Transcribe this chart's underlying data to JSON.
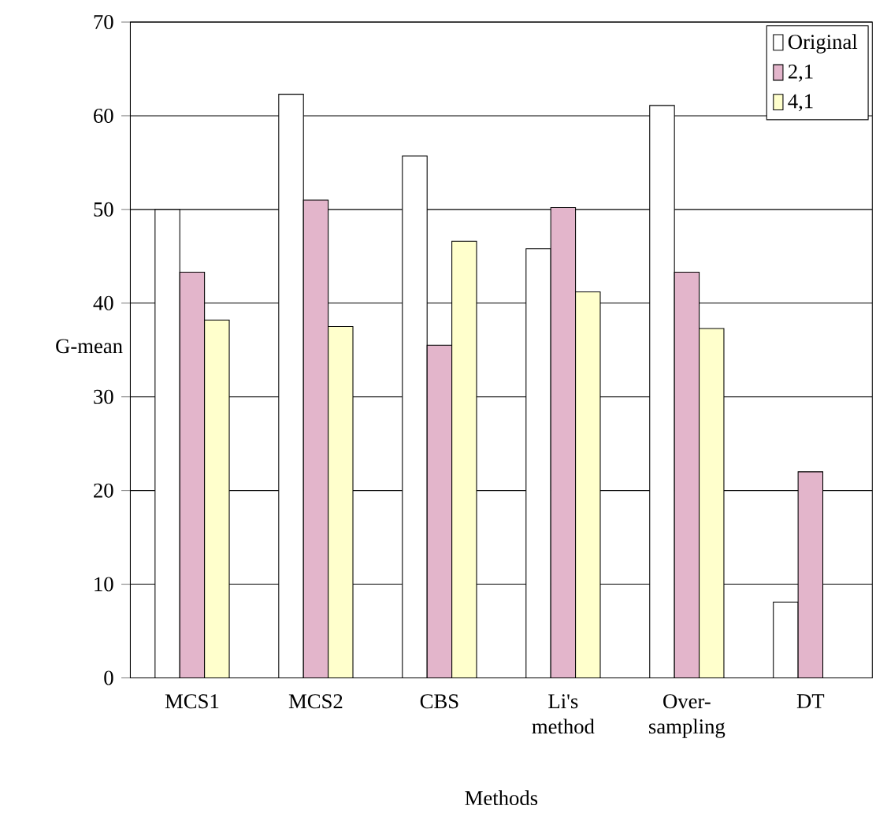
{
  "chart_data": {
    "type": "bar",
    "xlabel": "Methods",
    "ylabel": "G-mean",
    "categories": [
      "MCS1",
      "MCS2",
      "CBS",
      "Li's method",
      "Over-sampling",
      "DT"
    ],
    "series": [
      {
        "name": "Original",
        "color": "#ffffff",
        "values": [
          50,
          62.3,
          55.7,
          45.8,
          61.1,
          8.1
        ]
      },
      {
        "name": "2,1",
        "color": "#e3b5cb",
        "values": [
          43.3,
          51,
          35.5,
          50.2,
          43.3,
          22
        ]
      },
      {
        "name": "4,1",
        "color": "#ffffcc",
        "values": [
          38.2,
          37.5,
          46.6,
          41.2,
          37.3,
          null
        ]
      }
    ],
    "ylim": [
      0,
      70
    ],
    "yticks": [
      0,
      10,
      20,
      30,
      40,
      50,
      60,
      70
    ],
    "grid": "y",
    "legend": "top right"
  }
}
